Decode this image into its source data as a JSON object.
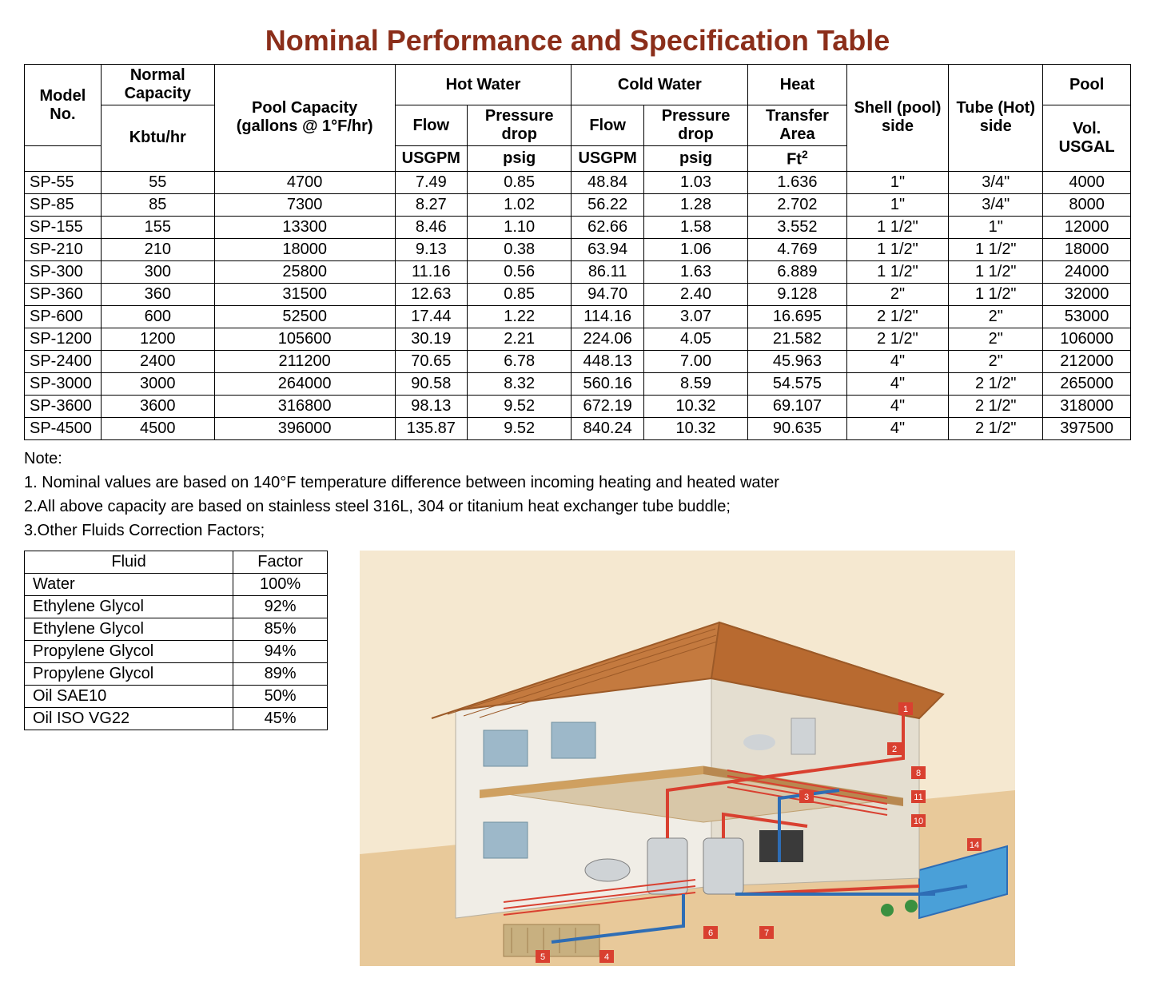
{
  "title": "Nominal Performance and Specification Table",
  "title_color": "#8b2e1a",
  "spec_table": {
    "header": {
      "model_no": "Model No.",
      "normal_capacity": "Normal Capacity",
      "kbtu": "Kbtu/hr",
      "pool_capacity": "Pool Capacity (gallons @ 1°F/hr)",
      "hot_water": "Hot Water",
      "cold_water": "Cold Water",
      "flow": "Flow",
      "pressure_drop": "Pressure drop",
      "usgpm": "USGPM",
      "psig": "psig",
      "heat": "Heat",
      "transfer_area": "Transfer Area",
      "ft2": "Ft",
      "shell_side": "Shell (pool) side",
      "tube_side": "Tube (Hot) side",
      "pool": "Pool",
      "vol_usgal": "Vol. USGAL"
    },
    "rows": [
      {
        "model": "SP-55",
        "cap": "55",
        "poolcap": "4700",
        "hf": "7.49",
        "hp": "0.85",
        "cf": "48.84",
        "cp": "1.03",
        "area": "1.636",
        "shell": "1\"",
        "tube": "3/4\"",
        "vol": "4000"
      },
      {
        "model": "SP-85",
        "cap": "85",
        "poolcap": "7300",
        "hf": "8.27",
        "hp": "1.02",
        "cf": "56.22",
        "cp": "1.28",
        "area": "2.702",
        "shell": "1\"",
        "tube": "3/4\"",
        "vol": "8000"
      },
      {
        "model": "SP-155",
        "cap": "155",
        "poolcap": "13300",
        "hf": "8.46",
        "hp": "1.10",
        "cf": "62.66",
        "cp": "1.58",
        "area": "3.552",
        "shell": "1 1/2\"",
        "tube": "1\"",
        "vol": "12000"
      },
      {
        "model": "SP-210",
        "cap": "210",
        "poolcap": "18000",
        "hf": "9.13",
        "hp": "0.38",
        "cf": "63.94",
        "cp": "1.06",
        "area": "4.769",
        "shell": "1 1/2\"",
        "tube": "1 1/2\"",
        "vol": "18000"
      },
      {
        "model": "SP-300",
        "cap": "300",
        "poolcap": "25800",
        "hf": "11.16",
        "hp": "0.56",
        "cf": "86.11",
        "cp": "1.63",
        "area": "6.889",
        "shell": "1 1/2\"",
        "tube": "1 1/2\"",
        "vol": "24000"
      },
      {
        "model": "SP-360",
        "cap": "360",
        "poolcap": "31500",
        "hf": "12.63",
        "hp": "0.85",
        "cf": "94.70",
        "cp": "2.40",
        "area": "9.128",
        "shell": "2\"",
        "tube": "1 1/2\"",
        "vol": "32000"
      },
      {
        "model": "SP-600",
        "cap": "600",
        "poolcap": "52500",
        "hf": "17.44",
        "hp": "1.22",
        "cf": "114.16",
        "cp": "3.07",
        "area": "16.695",
        "shell": "2 1/2\"",
        "tube": "2\"",
        "vol": "53000"
      },
      {
        "model": "SP-1200",
        "cap": "1200",
        "poolcap": "105600",
        "hf": "30.19",
        "hp": "2.21",
        "cf": "224.06",
        "cp": "4.05",
        "area": "21.582",
        "shell": "2 1/2\"",
        "tube": "2\"",
        "vol": "106000"
      },
      {
        "model": "SP-2400",
        "cap": "2400",
        "poolcap": "211200",
        "hf": "70.65",
        "hp": "6.78",
        "cf": "448.13",
        "cp": "7.00",
        "area": "45.963",
        "shell": "4\"",
        "tube": "2\"",
        "vol": "212000"
      },
      {
        "model": "SP-3000",
        "cap": "3000",
        "poolcap": "264000",
        "hf": "90.58",
        "hp": "8.32",
        "cf": "560.16",
        "cp": "8.59",
        "area": "54.575",
        "shell": "4\"",
        "tube": "2 1/2\"",
        "vol": "265000"
      },
      {
        "model": "SP-3600",
        "cap": "3600",
        "poolcap": "316800",
        "hf": "98.13",
        "hp": "9.52",
        "cf": "672.19",
        "cp": "10.32",
        "area": "69.107",
        "shell": "4\"",
        "tube": "2 1/2\"",
        "vol": "318000"
      },
      {
        "model": "SP-4500",
        "cap": "4500",
        "poolcap": "396000",
        "hf": "135.87",
        "hp": "9.52",
        "cf": "840.24",
        "cp": "10.32",
        "area": "90.635",
        "shell": "4\"",
        "tube": "2 1/2\"",
        "vol": "397500"
      }
    ]
  },
  "notes": {
    "heading": "Note:",
    "n1": "1. Nominal values are based on 140°F temperature difference between incoming heating and heated water",
    "n2": "2.All above capacity are based on stainless steel 316L, 304 or titanium heat exchanger tube buddle;",
    "n3": "3.Other Fluids Correction Factors;"
  },
  "factor_table": {
    "header": {
      "fluid": "Fluid",
      "factor": "Factor"
    },
    "rows": [
      {
        "fluid": "Water",
        "factor": "100%"
      },
      {
        "fluid": "Ethylene Glycol",
        "factor": "92%"
      },
      {
        "fluid": "Ethylene Glycol",
        "factor": "85%"
      },
      {
        "fluid": "Propylene Glycol",
        "factor": "94%"
      },
      {
        "fluid": "Propylene Glycol",
        "factor": "89%"
      },
      {
        "fluid": "Oil SAE10",
        "factor": "50%"
      },
      {
        "fluid": "Oil ISO VG22",
        "factor": "45%"
      }
    ]
  },
  "diagram": {
    "type": "infographic",
    "description": "Cutaway isometric house showing heating/pool piping",
    "colors": {
      "roof": "#c47a3f",
      "wall": "#f0ede6",
      "ground": "#e8c99a",
      "sky": "#f5e8d0",
      "pipe_red": "#d94030",
      "pipe_blue": "#2e6db5",
      "pool": "#4aa0d8",
      "tank": "#cfd3d6",
      "window": "#9db8c9",
      "marker": "#d94030"
    }
  }
}
